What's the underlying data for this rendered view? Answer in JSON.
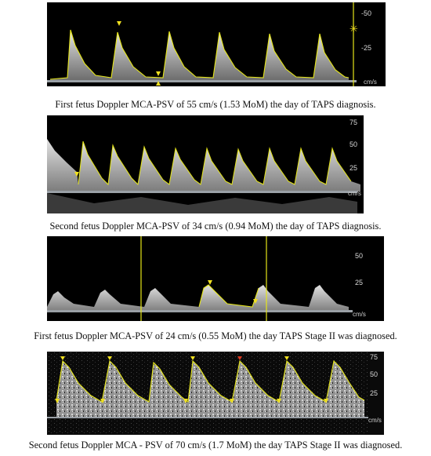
{
  "panels": [
    {
      "caption": "First fetus Doppler MCA-PSV of 55 cm/s (1.53 MoM) the day of TAPS diagnosis.",
      "scale_labels": [
        "-50",
        "-25"
      ],
      "unit": "cm/s"
    },
    {
      "caption": "Second fetus Doppler MCA-PSV of 34 cm/s (0.94 MoM) the day of TAPS diagnosis.",
      "scale_labels": [
        "75",
        "50",
        "25"
      ],
      "unit": "cm/s"
    },
    {
      "caption": "First fetus Doppler MCA-PSV of 24 cm/s (0.55 MoM) the day TAPS Stage II was diagnosed.",
      "scale_labels": [
        "50",
        "25"
      ],
      "unit": "cm/s"
    },
    {
      "caption": "Second fetus Doppler MCA - PSV of 70 cm/s (1.7 MoM) the day TAPS Stage II was diagnosed.",
      "scale_labels": [
        "75",
        "50",
        "25"
      ],
      "unit": "cm/s"
    }
  ],
  "colors": {
    "trace": "#e6e619",
    "marker": "#f0e020",
    "marker_alt": "#e03a20",
    "baseline": "#9aa0a6"
  }
}
